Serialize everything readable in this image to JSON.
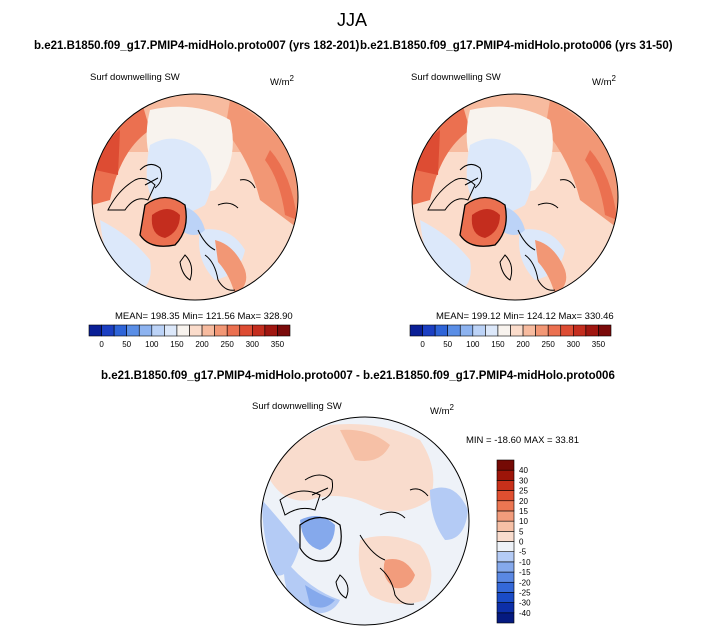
{
  "page": {
    "title": "JJA"
  },
  "panels": [
    {
      "case_title": "b.e21.B1850.f09_g17.PMIP4-midHolo.proto007 (yrs 182-201)",
      "field": "Surf downwelling SW",
      "units_base": "W/m",
      "units_exp": "2",
      "stats": "MEAN= 198.35  Min= 121.56  Max= 328.90"
    },
    {
      "case_title": "b.e21.B1850.f09_g17.PMIP4-midHolo.proto006 (yrs 31-50)",
      "field": "Surf downwelling SW",
      "units_base": "W/m",
      "units_exp": "2",
      "stats": "MEAN= 199.12  Min= 124.12  Max= 330.46"
    },
    {
      "case_title": "b.e21.B1850.f09_g17.PMIP4-midHolo.proto007 - b.e21.B1850.f09_g17.PMIP4-midHolo.proto006",
      "field": "Surf downwelling SW",
      "units_base": "W/m",
      "units_exp": "2",
      "stats": "MIN = -18.60 MAX =  33.81"
    }
  ],
  "chart_data": [
    {
      "type": "heatmap",
      "projection": "north-polar-stereographic",
      "variable": "Surf downwelling SW",
      "units": "W/m2",
      "summary": {
        "mean": 198.35,
        "min": 121.56,
        "max": 328.9
      },
      "colorbar": {
        "orientation": "horizontal",
        "levels": [
          0,
          25,
          50,
          75,
          100,
          125,
          150,
          175,
          200,
          225,
          250,
          275,
          300,
          325,
          350
        ],
        "tick_labels": [
          "0",
          "50",
          "100",
          "150",
          "200",
          "250",
          "300",
          "350"
        ],
        "colors": [
          "#0a1f96",
          "#1b3fc2",
          "#2e64d8",
          "#5a8ee6",
          "#8db3f0",
          "#bcd3f7",
          "#dce8fa",
          "#f8f3ee",
          "#fbdccb",
          "#f7bb9f",
          "#f29775",
          "#eb7050",
          "#dd4c33",
          "#c42d1e",
          "#a01610",
          "#7a0a0a"
        ]
      }
    },
    {
      "type": "heatmap",
      "projection": "north-polar-stereographic",
      "variable": "Surf downwelling SW",
      "units": "W/m2",
      "summary": {
        "mean": 199.12,
        "min": 124.12,
        "max": 330.46
      },
      "colorbar": {
        "orientation": "horizontal",
        "levels": [
          0,
          25,
          50,
          75,
          100,
          125,
          150,
          175,
          200,
          225,
          250,
          275,
          300,
          325,
          350
        ],
        "tick_labels": [
          "0",
          "50",
          "100",
          "150",
          "200",
          "250",
          "300",
          "350"
        ],
        "colors": [
          "#0a1f96",
          "#1b3fc2",
          "#2e64d8",
          "#5a8ee6",
          "#8db3f0",
          "#bcd3f7",
          "#dce8fa",
          "#f8f3ee",
          "#fbdccb",
          "#f7bb9f",
          "#f29775",
          "#eb7050",
          "#dd4c33",
          "#c42d1e",
          "#a01610",
          "#7a0a0a"
        ]
      }
    },
    {
      "type": "heatmap",
      "projection": "north-polar-stereographic",
      "variable": "Surf downwelling SW",
      "units": "W/m2",
      "summary": {
        "min": -18.6,
        "max": 33.81
      },
      "colorbar": {
        "orientation": "vertical",
        "levels": [
          -40,
          -30,
          -25,
          -20,
          -15,
          -10,
          -5,
          0,
          5,
          10,
          15,
          20,
          25,
          30,
          40
        ],
        "tick_labels": [
          "40",
          "30",
          "25",
          "20",
          "15",
          "10",
          "5",
          "0",
          "-5",
          "-10",
          "-15",
          "-20",
          "-25",
          "-30",
          "-40"
        ],
        "colors": [
          "#051a80",
          "#0d2fa8",
          "#1a4bc6",
          "#3468d8",
          "#5a88e3",
          "#85a9ec",
          "#b4cbf5",
          "#eef2f8",
          "#f9dccd",
          "#f6c0a6",
          "#f29c7c",
          "#ec7652",
          "#e04f30",
          "#c8301a",
          "#9d1509",
          "#750a05"
        ]
      }
    }
  ]
}
